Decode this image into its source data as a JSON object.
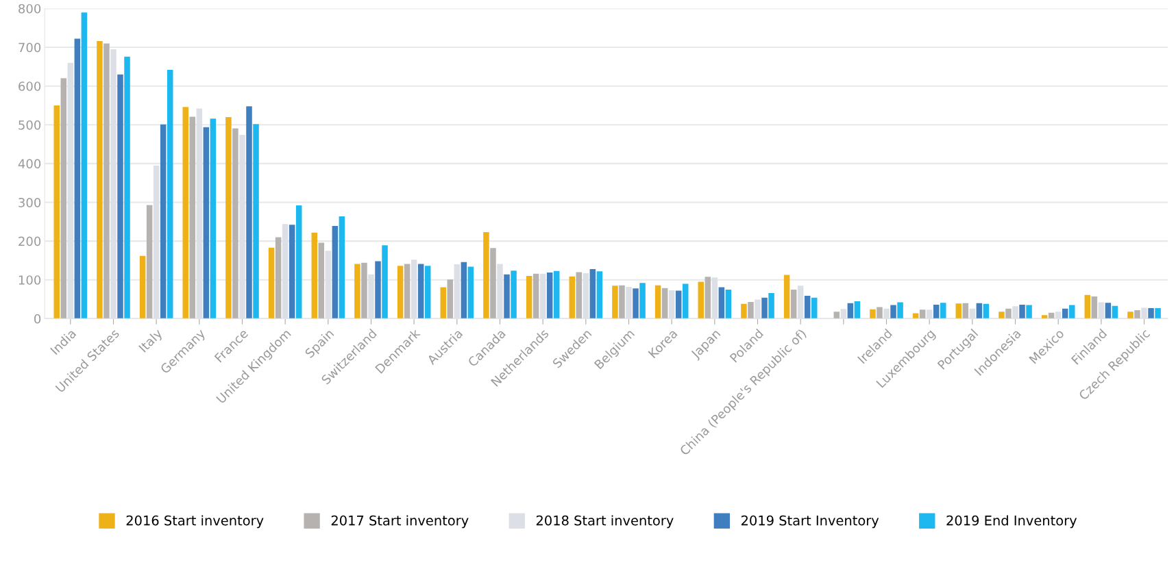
{
  "chart_data": {
    "type": "bar",
    "categories": [
      "India",
      "United States",
      "Italy",
      "Germany",
      "France",
      "United Kingdom",
      "Spain",
      "Switzerland",
      "Denmark",
      "Austria",
      "Canada",
      "Netherlands",
      "Sweden",
      "Belgium",
      "Korea",
      "Japan",
      "Poland",
      "China (People's Republic of)",
      null,
      "Ireland",
      "Luxembourg",
      "Portugal",
      "Indonesia",
      "Mexico",
      "Finland",
      "Czech Republic"
    ],
    "series": [
      {
        "name": "2016 Start inventory",
        "color": "#efb118",
        "values": [
          550,
          716,
          162,
          546,
          520,
          183,
          222,
          141,
          136,
          81,
          223,
          110,
          109,
          85,
          86,
          95,
          38,
          113,
          null,
          24,
          14,
          39,
          18,
          9,
          61,
          18
        ]
      },
      {
        "name": "2017 Start inventory",
        "color": "#b5b2b0",
        "values": [
          620,
          710,
          293,
          521,
          491,
          210,
          196,
          144,
          141,
          101,
          182,
          116,
          120,
          86,
          79,
          108,
          43,
          75,
          18,
          30,
          23,
          40,
          26,
          15,
          57,
          22
        ]
      },
      {
        "name": "2018 Start inventory",
        "color": "#dcdfe6",
        "values": [
          660,
          695,
          395,
          542,
          474,
          244,
          175,
          114,
          152,
          140,
          141,
          116,
          117,
          82,
          73,
          106,
          49,
          85,
          25,
          26,
          23,
          26,
          32,
          18,
          42,
          28
        ]
      },
      {
        "name": "2019 Start Inventory",
        "color": "#3f7fbf",
        "values": [
          722,
          630,
          501,
          494,
          548,
          242,
          239,
          148,
          141,
          146,
          114,
          119,
          128,
          78,
          72,
          81,
          54,
          59,
          40,
          35,
          36,
          40,
          36,
          26,
          41,
          27
        ]
      },
      {
        "name": "2019 End Inventory",
        "color": "#1db8f0",
        "values": [
          790,
          676,
          642,
          516,
          502,
          292,
          264,
          189,
          136,
          134,
          124,
          123,
          122,
          92,
          90,
          75,
          66,
          54,
          45,
          42,
          41,
          38,
          35,
          35,
          33,
          27
        ]
      }
    ],
    "ylim": [
      0,
      800
    ],
    "yticks": [
      0,
      100,
      200,
      300,
      400,
      500,
      600,
      700,
      800
    ],
    "grid": "y",
    "legend": "bottom"
  }
}
